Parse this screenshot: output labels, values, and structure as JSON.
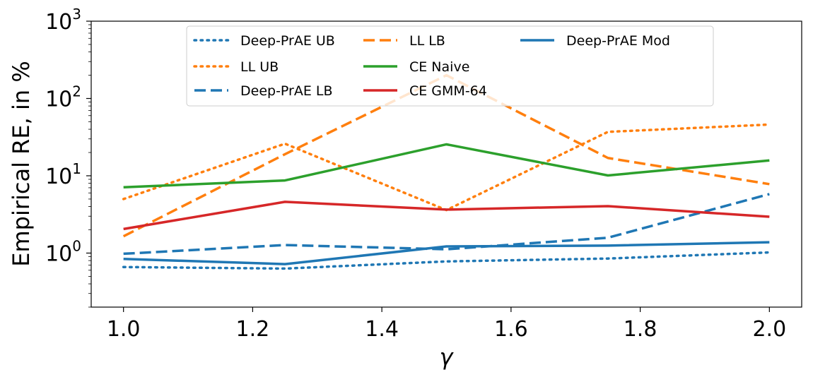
{
  "chart_data": {
    "type": "line",
    "title": "",
    "xlabel": "γ",
    "ylabel": "Empirical RE, in %",
    "yscale": "log",
    "xlim": [
      0.95,
      2.05
    ],
    "ylim": [
      0.2,
      1000
    ],
    "x": [
      1.0,
      1.25,
      1.5,
      1.75,
      2.0
    ],
    "x_ticks": [
      1.0,
      1.2,
      1.4,
      1.6,
      1.8,
      2.0
    ],
    "x_tick_labels": [
      "1.0",
      "1.2",
      "1.4",
      "1.6",
      "1.8",
      "2.0"
    ],
    "y_ticks": [
      {
        "value": 1,
        "base": "10",
        "exp": "0"
      },
      {
        "value": 10,
        "base": "10",
        "exp": "1"
      },
      {
        "value": 100,
        "base": "10",
        "exp": "2"
      },
      {
        "value": 1000,
        "base": "10",
        "exp": "3"
      }
    ],
    "grid": false,
    "legend_position": "top-center",
    "series": [
      {
        "name": "Deep-PrAE UB",
        "color": "#1f77b4",
        "style": "dotted",
        "values": [
          0.66,
          0.63,
          0.78,
          0.85,
          1.02
        ]
      },
      {
        "name": "LL UB",
        "color": "#ff7f0e",
        "style": "dotted",
        "values": [
          5.0,
          26,
          3.6,
          37,
          46
        ]
      },
      {
        "name": "Deep-PrAE LB",
        "color": "#1f77b4",
        "style": "dashed",
        "values": [
          0.98,
          1.27,
          1.12,
          1.58,
          5.8
        ]
      },
      {
        "name": "LL LB",
        "color": "#ff7f0e",
        "style": "dashed",
        "values": [
          1.65,
          19,
          200,
          17,
          7.8
        ]
      },
      {
        "name": "CE Naive",
        "color": "#2ca02c",
        "style": "solid",
        "values": [
          7.1,
          8.7,
          25.5,
          10.1,
          15.8
        ]
      },
      {
        "name": "CE GMM-64",
        "color": "#d62728",
        "style": "solid",
        "values": [
          2.05,
          4.6,
          3.65,
          4.05,
          2.95
        ]
      },
      {
        "name": "Deep-PrAE Mod",
        "color": "#1f77b4",
        "style": "solid",
        "values": [
          0.84,
          0.72,
          1.22,
          1.25,
          1.38
        ]
      }
    ]
  }
}
